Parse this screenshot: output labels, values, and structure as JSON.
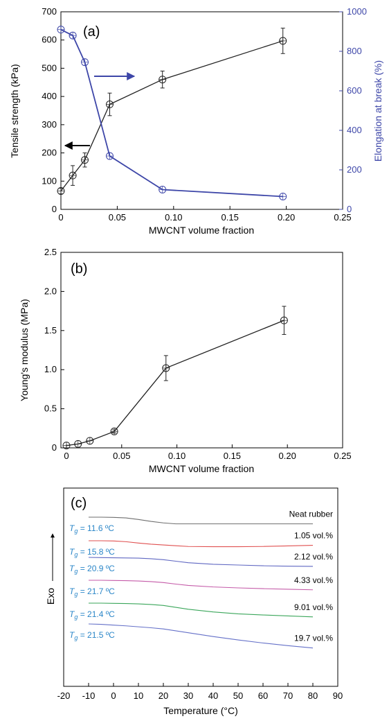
{
  "colors": {
    "axis": "#000000",
    "left_series": "#222222",
    "right_series": "#3d46a8",
    "tg_label": "#2a86c8",
    "dsc": [
      "#6e6e6e",
      "#e05050",
      "#5f67c2",
      "#c45aa8",
      "#3aa65a",
      "#6470c8"
    ]
  },
  "chart_data": [
    {
      "type": "line",
      "panel_label": "(a)",
      "xlabel": "MWCNT volume fraction",
      "ylabel": "Tensile strength (kPa)",
      "ylabel_right": "Elongation at break (%)",
      "xlim": [
        0,
        0.25
      ],
      "ylim": [
        0,
        700
      ],
      "ylim_right": [
        0,
        1000
      ],
      "x_ticks": [
        0,
        0.05,
        0.1,
        0.15,
        0.2,
        0.25
      ],
      "x_tick_labels": [
        "0",
        "0.05",
        "0.10",
        "0.15",
        "0.20",
        "0.25"
      ],
      "y_ticks": [
        0,
        100,
        200,
        300,
        400,
        500,
        600,
        700
      ],
      "y_ticks_right": [
        0,
        200,
        400,
        600,
        800,
        1000
      ],
      "series": [
        {
          "axis": "left",
          "marker": "open-circle-cross",
          "x": [
            0,
            0.0105,
            0.0212,
            0.0433,
            0.0901,
            0.197
          ],
          "y": [
            65,
            120,
            175,
            372,
            460,
            597
          ],
          "err": [
            10,
            35,
            25,
            40,
            30,
            45
          ]
        },
        {
          "axis": "right",
          "marker": "open-circle-cross",
          "x": [
            0,
            0.0105,
            0.0212,
            0.0433,
            0.0901,
            0.197
          ],
          "y": [
            910,
            880,
            745,
            270,
            100,
            65
          ]
        }
      ],
      "arrows": [
        {
          "direction": "left",
          "points_to": "left-axis"
        },
        {
          "direction": "right",
          "points_to": "right-axis"
        }
      ]
    },
    {
      "type": "line",
      "panel_label": "(b)",
      "xlabel": "MWCNT volume fraction",
      "ylabel": "Young's modulus (MPa)",
      "xlim": [
        -0.005,
        0.25
      ],
      "ylim": [
        0,
        2.5
      ],
      "x_ticks": [
        0,
        0.05,
        0.1,
        0.15,
        0.2,
        0.25
      ],
      "x_tick_labels": [
        "0",
        "0.05",
        "0.10",
        "0.15",
        "0.20",
        "0.25"
      ],
      "y_ticks": [
        0,
        0.5,
        1.0,
        1.5,
        2.0,
        2.5
      ],
      "y_tick_labels": [
        "0",
        "0.5",
        "1.0",
        "1.5",
        "2.0",
        "2.5"
      ],
      "series": [
        {
          "marker": "open-circle-cross",
          "x": [
            0,
            0.0105,
            0.0212,
            0.0433,
            0.0901,
            0.197
          ],
          "y": [
            0.03,
            0.05,
            0.09,
            0.21,
            1.02,
            1.63
          ],
          "err": [
            0,
            0,
            0,
            0.02,
            0.16,
            0.18
          ]
        }
      ]
    },
    {
      "type": "line",
      "panel_label": "(c)",
      "xlabel": "Temperature (°C)",
      "ylabel": "Exo",
      "xlim": [
        -20,
        90
      ],
      "x_ticks": [
        -20,
        -10,
        0,
        10,
        20,
        30,
        40,
        50,
        60,
        70,
        80,
        90
      ],
      "x_tick_labels": [
        "-20",
        "-10",
        "0",
        "10",
        "20",
        "30",
        "40",
        "50",
        "60",
        "70",
        "80",
        "90"
      ],
      "y_ticks": [],
      "series": [
        {
          "name": "Neat rubber",
          "tg": "11.6 ºC",
          "x": [
            -10,
            -5,
            0,
            5,
            10,
            15,
            20,
            25,
            30,
            40,
            50,
            60,
            70,
            80
          ],
          "y": [
            0.0,
            0.0,
            0.05,
            0.2,
            0.6,
            1.1,
            1.5,
            1.75,
            1.75,
            1.75,
            1.75,
            1.75,
            1.75,
            1.75
          ]
        },
        {
          "name": "1.05 vol.%",
          "tg": "15.8 ºC",
          "x": [
            -10,
            -5,
            0,
            5,
            10,
            15,
            20,
            25,
            30,
            40,
            50,
            60,
            70,
            80
          ],
          "y": [
            0.0,
            0.0,
            0.05,
            0.25,
            0.6,
            0.9,
            1.1,
            1.3,
            1.5,
            1.55,
            1.55,
            1.5,
            1.35,
            1.2
          ]
        },
        {
          "name": "2.12 vol.%",
          "tg": "20.9 ºC",
          "x": [
            -10,
            -5,
            0,
            5,
            10,
            15,
            20,
            25,
            30,
            40,
            50,
            60,
            70,
            80
          ],
          "y": [
            0.0,
            0.05,
            0.1,
            0.15,
            0.2,
            0.35,
            0.6,
            1.0,
            1.4,
            1.8,
            2.0,
            2.2,
            2.3,
            2.35
          ]
        },
        {
          "name": "4.33 vol.%",
          "tg": "21.7 ºC",
          "x": [
            -10,
            -5,
            0,
            5,
            10,
            15,
            20,
            25,
            30,
            40,
            50,
            60,
            70,
            80
          ],
          "y": [
            0.0,
            0.0,
            0.05,
            0.1,
            0.2,
            0.35,
            0.6,
            1.0,
            1.35,
            1.75,
            2.0,
            2.2,
            2.35,
            2.5
          ]
        },
        {
          "name": "9.01 vol.%",
          "tg": "21.4 ºC",
          "x": [
            -10,
            -5,
            0,
            5,
            10,
            15,
            20,
            25,
            30,
            40,
            50,
            60,
            70,
            80
          ],
          "y": [
            0.0,
            0.0,
            0.05,
            0.1,
            0.2,
            0.35,
            0.6,
            1.1,
            1.6,
            2.3,
            2.8,
            3.1,
            3.35,
            3.6
          ]
        },
        {
          "name": "19.7 vol.%",
          "tg": "21.5 ºC",
          "x": [
            -10,
            -5,
            0,
            5,
            10,
            15,
            20,
            25,
            30,
            40,
            50,
            60,
            70,
            80
          ],
          "y": [
            0.0,
            0.1,
            0.3,
            0.5,
            0.75,
            1.0,
            1.3,
            1.8,
            2.3,
            3.3,
            4.2,
            5.0,
            5.7,
            6.3
          ]
        }
      ]
    }
  ]
}
